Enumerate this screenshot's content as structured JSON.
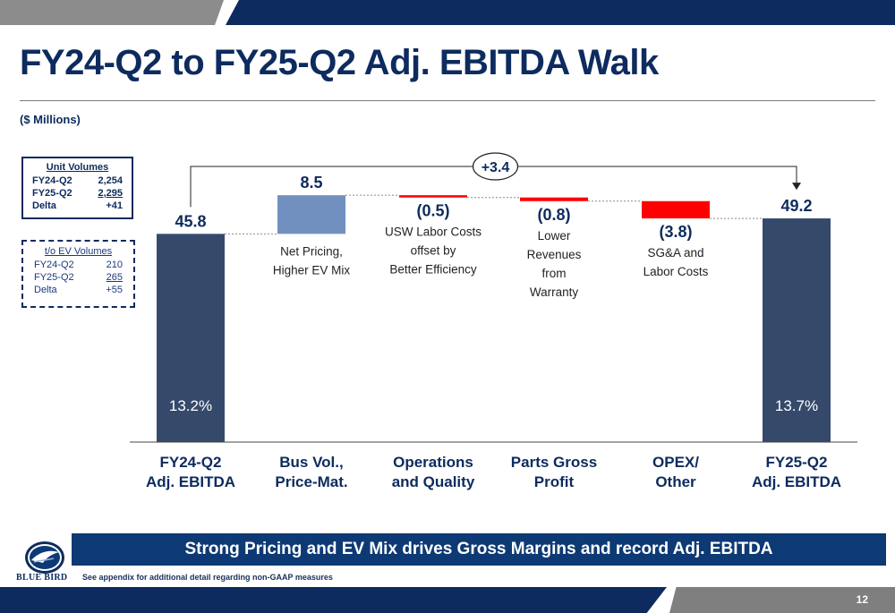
{
  "title": "FY24-Q2 to FY25-Q2 Adj. EBITDA Walk",
  "subtitle": "($ Millions)",
  "unit_volumes": {
    "heading": "Unit Volumes",
    "rows": [
      {
        "label": "FY24-Q2",
        "value": "2,254"
      },
      {
        "label": "FY25-Q2",
        "value": "2,295"
      },
      {
        "label": "Delta",
        "value": "+41"
      }
    ]
  },
  "ev_volumes": {
    "heading": "t/o EV Volumes",
    "rows": [
      {
        "label": "FY24-Q2",
        "value": "210"
      },
      {
        "label": "FY25-Q2",
        "value": "265"
      },
      {
        "label": "Delta",
        "value": "+55"
      }
    ]
  },
  "chart_data": {
    "type": "bar",
    "subtype": "waterfall",
    "categories": [
      "FY24-Q2 Adj. EBITDA",
      "Bus Vol., Price-Mat.",
      "Operations and Quality",
      "Parts Gross Profit",
      "OPEX/ Other",
      "FY25-Q2 Adj. EBITDA"
    ],
    "category_lines": [
      [
        "FY24-Q2",
        "Adj. EBITDA"
      ],
      [
        "Bus Vol.,",
        "Price-Mat."
      ],
      [
        "Operations",
        "and Quality"
      ],
      [
        "Parts Gross",
        "Profit"
      ],
      [
        "OPEX/",
        "Other"
      ],
      [
        "FY25-Q2",
        "Adj. EBITDA"
      ]
    ],
    "values": [
      45.8,
      8.5,
      -0.5,
      -0.8,
      -3.8,
      49.2
    ],
    "value_labels": [
      "45.8",
      "8.5",
      "(0.5)",
      "(0.8)",
      "(3.8)",
      "49.2"
    ],
    "kinds": [
      "total",
      "delta",
      "delta",
      "delta",
      "delta",
      "total"
    ],
    "annotations": [
      null,
      [
        "Net Pricing,",
        "Higher EV Mix"
      ],
      [
        "USW Labor Costs",
        "offset by",
        "Better Efficiency"
      ],
      [
        "Lower",
        "Revenues",
        "from",
        "Warranty"
      ],
      [
        "SG&A and",
        "Labor Costs"
      ],
      null
    ],
    "margins": [
      "13.2%",
      null,
      null,
      null,
      null,
      "13.7%"
    ],
    "bridge_label": "+3.4",
    "colors": {
      "total": "#354a6a",
      "increase": "#7190bf",
      "decrease": "#ff0000"
    }
  },
  "banner": "Strong Pricing and EV Mix drives Gross Margins and record Adj. EBITDA",
  "footnote": "See appendix for additional detail regarding non-GAAP measures",
  "logo_text": "BLUE BIRD",
  "page_number": "12"
}
